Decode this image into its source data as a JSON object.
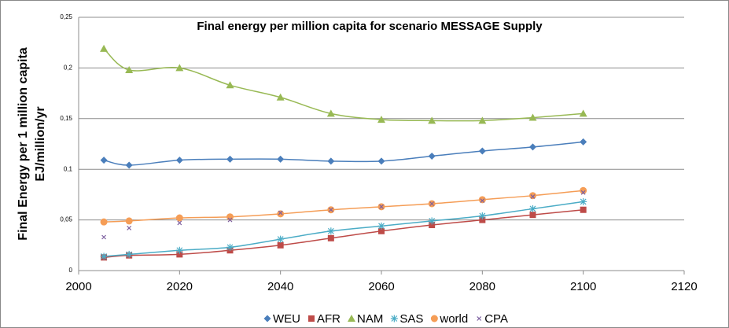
{
  "chart_data": {
    "type": "scatter",
    "title": "Final energy per million capita for scenario MESSAGE Supply",
    "y_label": [
      "Final Energy per 1 million capita",
      "EJ/million/yr"
    ],
    "x": [
      2005,
      2010,
      2020,
      2030,
      2040,
      2050,
      2060,
      2070,
      2080,
      2090,
      2100
    ],
    "series": [
      {
        "name": "WEU",
        "color": "#4a7ebb",
        "marker": "diamond",
        "line": true,
        "values": [
          0.109,
          0.104,
          0.109,
          0.11,
          0.11,
          0.108,
          0.108,
          0.113,
          0.118,
          0.122,
          0.127
        ]
      },
      {
        "name": "AFR",
        "color": "#be4b48",
        "marker": "square",
        "line": true,
        "values": [
          0.013,
          0.015,
          0.016,
          0.02,
          0.025,
          0.032,
          0.039,
          0.045,
          0.05,
          0.055,
          0.06
        ]
      },
      {
        "name": "NAM",
        "color": "#98b954",
        "marker": "triangle",
        "line": true,
        "values": [
          0.219,
          0.198,
          0.2,
          0.183,
          0.171,
          0.155,
          0.149,
          0.148,
          0.148,
          0.151,
          0.155
        ]
      },
      {
        "name": "SAS",
        "color": "#4bacc6",
        "marker": "star",
        "line": true,
        "values": [
          0.014,
          0.016,
          0.02,
          0.023,
          0.031,
          0.039,
          0.044,
          0.049,
          0.054,
          0.061,
          0.068
        ]
      },
      {
        "name": "world",
        "color": "#f59d56",
        "marker": "circle",
        "line": true,
        "values": [
          0.048,
          0.049,
          0.052,
          0.053,
          0.056,
          0.06,
          0.063,
          0.066,
          0.07,
          0.074,
          0.079
        ]
      },
      {
        "name": "CPA",
        "color": "#7d60a0",
        "marker": "x",
        "line": false,
        "values": [
          0.033,
          0.042,
          0.047,
          0.05,
          0.057,
          0.06,
          0.063,
          0.066,
          0.069,
          0.073,
          0.077
        ]
      }
    ],
    "xlim": [
      2000,
      2120
    ],
    "xticks": [
      2000,
      2020,
      2040,
      2060,
      2080,
      2100,
      2120
    ],
    "ylim": [
      0,
      0.25
    ],
    "yticks": [
      0,
      {
        "value": 0.05,
        "label": "0,05"
      },
      {
        "value": 0.1,
        "label": "0,1"
      },
      {
        "value": 0.15,
        "label": "0,15"
      },
      {
        "value": 0.2,
        "label": "0,2"
      },
      {
        "value": 0.25,
        "label": "0,25"
      }
    ],
    "grid": true,
    "legend": "bottom"
  }
}
